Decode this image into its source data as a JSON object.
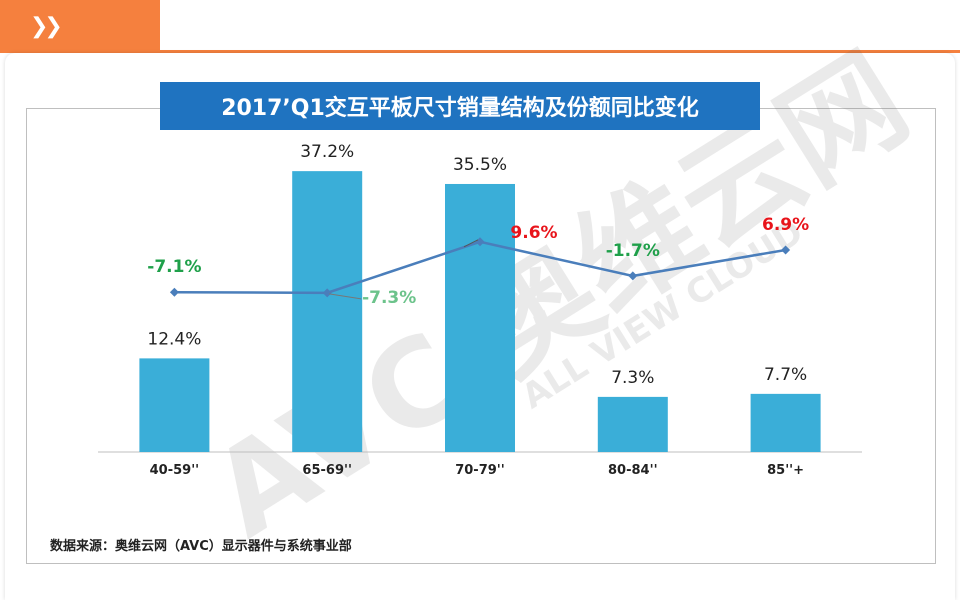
{
  "header": {
    "icon": "double-chevron-right-icon",
    "accent_color": "#f5803e"
  },
  "title": "2017’Q1交互平板尺寸销量结构及份额同比变化",
  "source": "数据来源：奥维云网（AVC）显示器件与系统事业部",
  "watermark": {
    "main": "AVC 奥维云网",
    "sub": "ALL VIEW CLOUD"
  },
  "chart_data": {
    "type": "bar",
    "categories": [
      "40-59''",
      "65-69''",
      "70-79''",
      "80-84''",
      "85''+"
    ],
    "series": [
      {
        "type": "bar",
        "values": [
          12.4,
          37.2,
          35.5,
          7.3,
          7.7
        ],
        "labels": [
          "12.4%",
          "37.2%",
          "35.5%",
          "7.3%",
          "7.7%"
        ],
        "color": "#3aaed8"
      },
      {
        "type": "line",
        "values": [
          -7.1,
          -7.3,
          9.6,
          -1.7,
          6.9
        ],
        "labels": [
          "-7.1%",
          "-7.3%",
          "9.6%",
          "-1.7%",
          "6.9%"
        ],
        "color": "#4a7ebb"
      }
    ],
    "bar_ylim": [
      0,
      40
    ],
    "line_ylim": [
      -60,
      40
    ],
    "label_colors": {
      "positive": "#e8141b",
      "negative": "#1fa04a",
      "negative_light": "#6cc38b"
    },
    "grid": false,
    "legend": "none"
  }
}
